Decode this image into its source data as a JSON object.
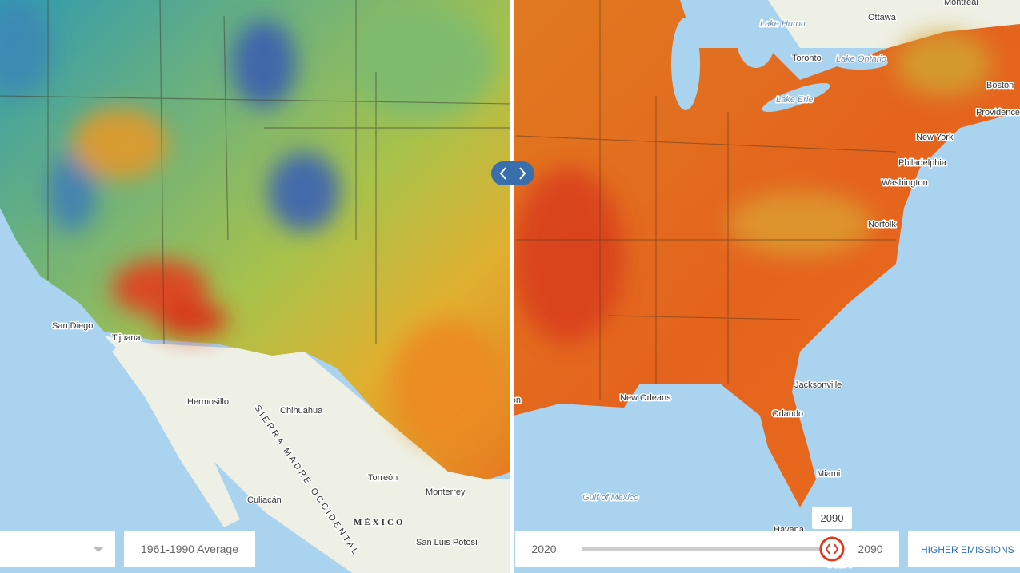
{
  "map": {
    "left_labels": [
      "San Diego",
      "Tijuana",
      "Hermosillo",
      "Chihuahua",
      "SIERRA MADRE OCCIDENTAL",
      "Torreón",
      "Monterrey",
      "Culiacán",
      "MÉXICO",
      "San Luis Potosí"
    ],
    "right_labels": [
      "Montreal",
      "Ottawa",
      "Lake Huron",
      "Toronto",
      "Lake Ontario",
      "Lake Erie",
      "Boston",
      "Providence",
      "New York",
      "Philadelphia",
      "Washington",
      "Norfolk",
      "Jacksonville",
      "New Orleans",
      "Houston",
      "Orlando",
      "Miami",
      "Gulf of Mexico",
      "Havana",
      "CUBA"
    ]
  },
  "controls": {
    "period": "1961-1990 Average",
    "slider": {
      "min": 2020,
      "max": 2090,
      "value": 2090
    },
    "scenario": "HIGHER EMISSIONS"
  }
}
